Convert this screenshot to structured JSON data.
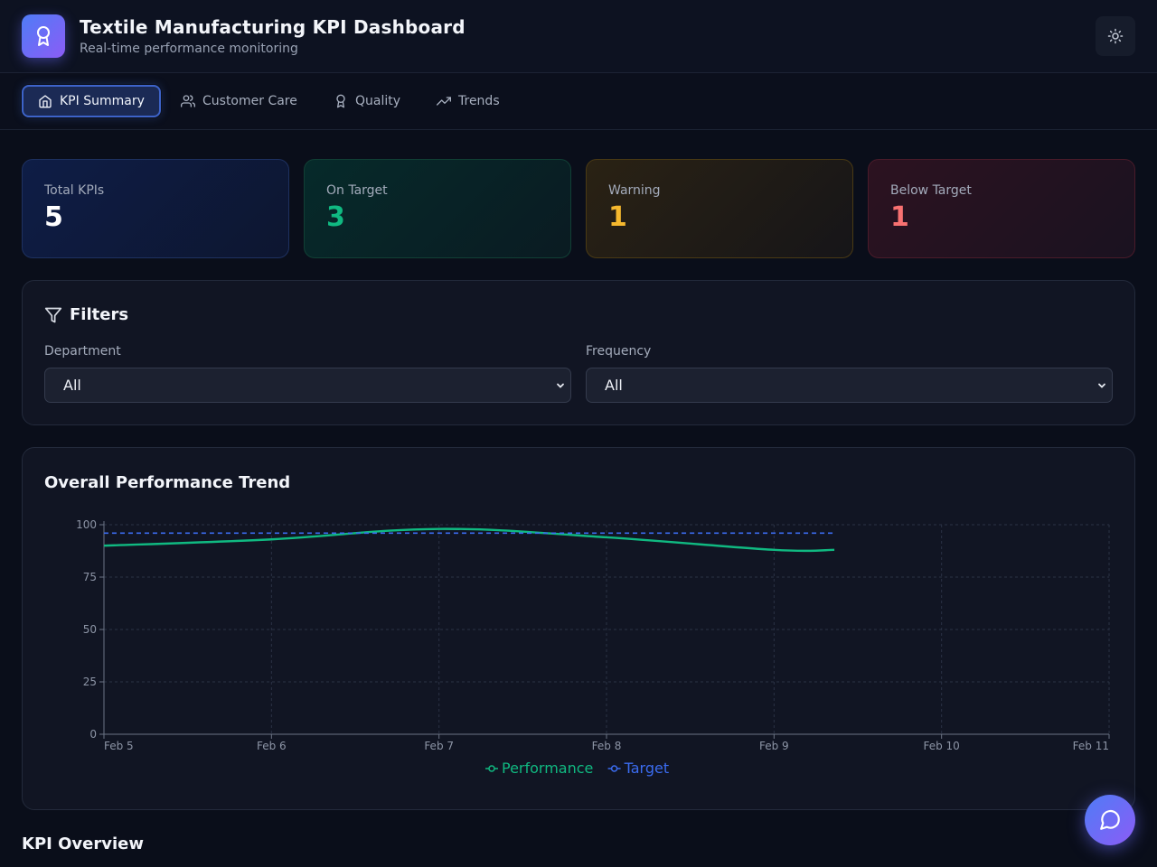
{
  "header": {
    "title": "Textile Manufacturing KPI Dashboard",
    "subtitle": "Real-time performance monitoring",
    "logo_icon": "award-icon",
    "theme_toggle_icon": "sun-icon"
  },
  "tabs": [
    {
      "label": "KPI Summary",
      "icon": "home-icon",
      "active": true
    },
    {
      "label": "Customer Care",
      "icon": "users-icon",
      "active": false
    },
    {
      "label": "Quality",
      "icon": "award-icon",
      "active": false
    },
    {
      "label": "Trends",
      "icon": "trending-up-icon",
      "active": false
    }
  ],
  "stats": [
    {
      "label": "Total KPIs",
      "value": "5",
      "color": "#ffffff"
    },
    {
      "label": "On Target",
      "value": "3",
      "color": "#10b981"
    },
    {
      "label": "Warning",
      "value": "1",
      "color": "#f5b82e"
    },
    {
      "label": "Below Target",
      "value": "1",
      "color": "#f87171"
    }
  ],
  "filters": {
    "title": "Filters",
    "department": {
      "label": "Department",
      "value": "All"
    },
    "frequency": {
      "label": "Frequency",
      "value": "All"
    }
  },
  "chart_panel": {
    "title": "Overall Performance Trend"
  },
  "chart_data": {
    "type": "line",
    "x": [
      "Feb 5",
      "Feb 6",
      "Feb 7",
      "Feb 8",
      "Feb 9",
      "Feb 10",
      "Feb 11"
    ],
    "x_values": [
      0,
      1,
      2,
      3,
      4,
      5,
      6
    ],
    "series": [
      {
        "name": "Performance",
        "color": "#10b981",
        "style": "solid",
        "points": [
          [
            0,
            90
          ],
          [
            1,
            93
          ],
          [
            2,
            98
          ],
          [
            3,
            94
          ],
          [
            4,
            88
          ],
          [
            4.36,
            88
          ]
        ]
      },
      {
        "name": "Target",
        "color": "#3b6cf0",
        "style": "dashed",
        "points": [
          [
            0,
            96
          ],
          [
            4.36,
            96
          ]
        ]
      }
    ],
    "ylim": [
      0,
      100
    ],
    "yticks": [
      0,
      25,
      50,
      75,
      100
    ],
    "grid": true,
    "legend": "bottom-center"
  },
  "kpi_overview": {
    "title": "KPI Overview"
  },
  "fab": {
    "icon": "message-circle-icon"
  }
}
